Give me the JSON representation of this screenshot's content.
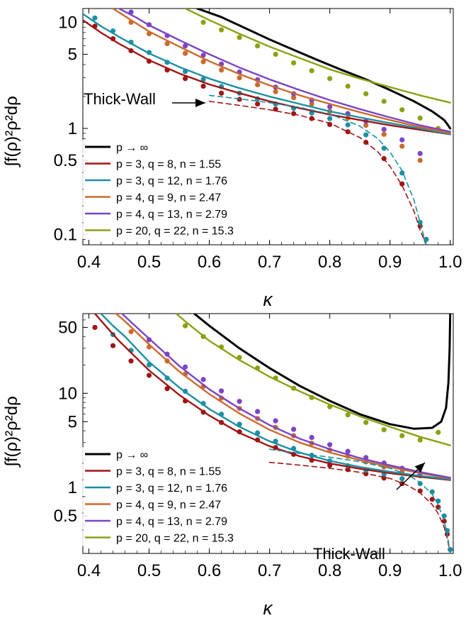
{
  "colors": {
    "p_inf": "#000000",
    "p3q8": "#a01515",
    "p3q12": "#1c8fa3",
    "p4q9": "#cc6a2c",
    "p4q13": "#7b44c6",
    "p20q22": "#8ea012"
  },
  "chart_data": [
    {
      "type": "line",
      "title": "",
      "xlabel": "κ",
      "ylabel": "∫f(ρ)²ρ²dρ",
      "yscale": "log",
      "xlim": [
        0.39,
        1.005
      ],
      "ylim": [
        0.08,
        13.5
      ],
      "x_ticks": [
        0.4,
        0.5,
        0.6,
        0.7,
        0.8,
        0.9,
        1.0
      ],
      "x_tick_labels": [
        "0.4",
        "0.5",
        "0.6",
        "0.7",
        "0.8",
        "0.9",
        "1.0"
      ],
      "y_ticks": [
        0.1,
        0.5,
        1,
        5,
        10
      ],
      "y_tick_labels": [
        "0.1",
        "0.5",
        "1",
        "5",
        "10"
      ],
      "legend_position": "bottom-left",
      "annotation": {
        "text": "Thick-Wall",
        "points_to": [
          0.6,
          2.0
        ]
      },
      "series": [
        {
          "name": "p → ∞",
          "color_key": "p_inf",
          "style": "solid-thick",
          "x": [
            0.58,
            0.62,
            0.66,
            0.7,
            0.74,
            0.78,
            0.82,
            0.86,
            0.9,
            0.94,
            0.97,
            0.99,
            0.995,
            1.0
          ],
          "y": [
            13.5,
            11.2,
            8.8,
            6.9,
            5.5,
            4.4,
            3.55,
            2.9,
            2.3,
            1.8,
            1.45,
            1.2,
            1.1,
            1.0
          ]
        },
        {
          "name": "p = 3, q = 8, n = 1.55",
          "color_key": "p3q8",
          "style": "solid",
          "x": [
            0.39,
            0.42,
            0.45,
            0.5,
            0.55,
            0.6,
            0.65,
            0.7,
            0.75,
            0.8,
            0.85,
            0.9,
            0.95,
            1.0
          ],
          "y": [
            10.5,
            8.0,
            6.3,
            4.4,
            3.3,
            2.6,
            2.15,
            1.8,
            1.55,
            1.35,
            1.2,
            1.07,
            0.97,
            0.88
          ]
        },
        {
          "name": "p = 3, q = 12, n = 1.76",
          "color_key": "p3q12",
          "style": "solid",
          "x": [
            0.39,
            0.42,
            0.45,
            0.5,
            0.55,
            0.6,
            0.65,
            0.7,
            0.75,
            0.8,
            0.85,
            0.9,
            0.95,
            1.0
          ],
          "y": [
            12.0,
            9.2,
            7.3,
            5.1,
            3.8,
            2.95,
            2.4,
            2.0,
            1.7,
            1.45,
            1.27,
            1.12,
            1.0,
            0.88
          ]
        },
        {
          "name": "p = 4, q = 9, n = 2.47",
          "color_key": "p4q9",
          "style": "solid",
          "x": [
            0.44,
            0.47,
            0.5,
            0.55,
            0.6,
            0.65,
            0.7,
            0.75,
            0.8,
            0.85,
            0.9,
            0.95,
            1.0
          ],
          "y": [
            13.5,
            10.5,
            8.2,
            5.9,
            4.3,
            3.25,
            2.55,
            2.05,
            1.7,
            1.42,
            1.2,
            1.03,
            0.9
          ]
        },
        {
          "name": "p = 4, q = 13, n = 2.79",
          "color_key": "p4q13",
          "style": "solid",
          "x": [
            0.45,
            0.48,
            0.5,
            0.55,
            0.6,
            0.65,
            0.7,
            0.75,
            0.8,
            0.85,
            0.9,
            0.95,
            1.0
          ],
          "y": [
            13.5,
            11.0,
            9.4,
            6.8,
            5.0,
            3.75,
            2.9,
            2.3,
            1.85,
            1.52,
            1.27,
            1.07,
            0.93
          ]
        },
        {
          "name": "p = 20, q = 22, n = 15.3",
          "color_key": "p20q22",
          "style": "solid",
          "x": [
            0.56,
            0.6,
            0.65,
            0.7,
            0.75,
            0.8,
            0.85,
            0.9,
            0.95,
            1.0
          ],
          "y": [
            13.5,
            10.5,
            7.8,
            5.9,
            4.6,
            3.6,
            2.95,
            2.45,
            2.05,
            1.75
          ]
        },
        {
          "name": "p = 3, q = 8, n = 1.55 (thick-wall)",
          "color_key": "p3q8",
          "style": "dashed",
          "x": [
            0.6,
            0.65,
            0.7,
            0.75,
            0.8,
            0.85,
            0.88,
            0.9,
            0.92,
            0.94,
            0.95,
            0.96
          ],
          "y": [
            1.8,
            1.65,
            1.5,
            1.33,
            1.12,
            0.82,
            0.6,
            0.44,
            0.29,
            0.165,
            0.11,
            0.08
          ]
        },
        {
          "name": "p = 3, q = 12, n = 1.76 (thick-wall)",
          "color_key": "p3q12",
          "style": "dashed",
          "x": [
            0.6,
            0.65,
            0.7,
            0.75,
            0.8,
            0.85,
            0.88,
            0.9,
            0.92,
            0.94,
            0.95,
            0.96
          ],
          "y": [
            2.05,
            1.9,
            1.75,
            1.58,
            1.37,
            1.05,
            0.8,
            0.6,
            0.4,
            0.21,
            0.13,
            0.08
          ]
        }
      ],
      "points": [
        {
          "color_key": "p3q8",
          "x": [
            0.41,
            0.44,
            0.47,
            0.5,
            0.53,
            0.56,
            0.59,
            0.62,
            0.65,
            0.68,
            0.71,
            0.74,
            0.77,
            0.8,
            0.83,
            0.86,
            0.89,
            0.92,
            0.95,
            0.96
          ],
          "y": [
            9.2,
            7.0,
            5.4,
            4.3,
            3.55,
            2.95,
            2.5,
            2.15,
            1.88,
            1.7,
            1.52,
            1.38,
            1.24,
            1.09,
            0.93,
            0.74,
            0.52,
            0.3,
            0.12,
            0.09
          ]
        },
        {
          "color_key": "p3q12",
          "x": [
            0.41,
            0.44,
            0.47,
            0.5,
            0.53,
            0.56,
            0.59,
            0.62,
            0.65,
            0.68,
            0.71,
            0.74,
            0.77,
            0.8,
            0.83,
            0.86,
            0.89,
            0.92,
            0.95,
            0.96
          ],
          "y": [
            11.0,
            8.3,
            6.5,
            5.2,
            4.2,
            3.45,
            2.9,
            2.48,
            2.15,
            1.9,
            1.7,
            1.55,
            1.4,
            1.24,
            1.08,
            0.87,
            0.65,
            0.38,
            0.13,
            0.09
          ]
        },
        {
          "color_key": "p4q9",
          "x": [
            0.47,
            0.5,
            0.53,
            0.56,
            0.59,
            0.62,
            0.65,
            0.68,
            0.71,
            0.74,
            0.77,
            0.8,
            0.83,
            0.86,
            0.89,
            0.92,
            0.95
          ],
          "y": [
            10.0,
            7.8,
            6.3,
            5.1,
            4.25,
            3.55,
            3.0,
            2.58,
            2.22,
            1.95,
            1.7,
            1.45,
            1.25,
            1.07,
            0.88,
            0.68,
            0.5
          ]
        },
        {
          "color_key": "p4q13",
          "x": [
            0.47,
            0.5,
            0.53,
            0.56,
            0.59,
            0.62,
            0.65,
            0.68,
            0.71,
            0.74,
            0.77,
            0.8,
            0.83,
            0.86,
            0.89,
            0.92,
            0.95
          ],
          "y": [
            12.5,
            9.5,
            7.5,
            6.0,
            4.9,
            4.05,
            3.4,
            2.88,
            2.45,
            2.12,
            1.85,
            1.6,
            1.38,
            1.17,
            0.98,
            0.78,
            0.58
          ]
        },
        {
          "color_key": "p20q22",
          "x": [
            0.59,
            0.62,
            0.65,
            0.68,
            0.71,
            0.74,
            0.77,
            0.8,
            0.83,
            0.86,
            0.89,
            0.92,
            0.95,
            0.98
          ],
          "y": [
            10.0,
            8.5,
            7.2,
            6.0,
            5.0,
            4.15,
            3.5,
            2.95,
            2.5,
            2.12,
            1.8,
            1.5,
            1.25,
            1.0
          ]
        }
      ]
    },
    {
      "type": "line",
      "title": "",
      "xlabel": "κ",
      "ylabel": "∫f(ρ)²ρ²dρ",
      "yscale": "log",
      "xlim": [
        0.39,
        1.005
      ],
      "ylim": [
        0.2,
        70
      ],
      "x_ticks": [
        0.4,
        0.5,
        0.6,
        0.7,
        0.8,
        0.9,
        1.0
      ],
      "x_tick_labels": [
        "0.4",
        "0.5",
        "0.6",
        "0.7",
        "0.8",
        "0.9",
        "1.0"
      ],
      "y_ticks": [
        0.5,
        1,
        5,
        10,
        50
      ],
      "y_tick_labels": [
        "0.5",
        "1",
        "5",
        "10",
        "50"
      ],
      "legend_position": "bottom-left",
      "annotation": {
        "text": "Thick-Wall",
        "points_to": [
          0.975,
          0.95
        ]
      },
      "series": [
        {
          "name": "p → ∞",
          "color_key": "p_inf",
          "style": "solid-thick",
          "x": [
            0.575,
            0.6,
            0.65,
            0.7,
            0.75,
            0.8,
            0.85,
            0.9,
            0.94,
            0.97,
            0.985,
            0.993,
            0.997,
            0.999,
            1.0
          ],
          "y": [
            70,
            52,
            30,
            18.5,
            12.0,
            8.3,
            6.0,
            4.7,
            4.2,
            4.3,
            5.0,
            7.0,
            13.0,
            30.0,
            70.0
          ]
        },
        {
          "name": "p = 3, q = 8, n = 1.55",
          "color_key": "p3q8",
          "style": "solid",
          "x": [
            0.41,
            0.43,
            0.45,
            0.5,
            0.55,
            0.6,
            0.65,
            0.7,
            0.75,
            0.8,
            0.85,
            0.9,
            0.95,
            1.0
          ],
          "y": [
            70,
            50,
            36,
            17.5,
            9.6,
            5.8,
            3.8,
            2.75,
            2.15,
            1.8,
            1.58,
            1.42,
            1.3,
            1.2
          ]
        },
        {
          "name": "p = 3, q = 12, n = 1.76",
          "color_key": "p3q12",
          "style": "solid",
          "x": [
            0.42,
            0.44,
            0.46,
            0.5,
            0.55,
            0.6,
            0.65,
            0.7,
            0.75,
            0.8,
            0.85,
            0.9,
            0.95,
            1.0
          ],
          "y": [
            70,
            52,
            40,
            21.5,
            11.5,
            6.8,
            4.4,
            3.1,
            2.35,
            1.92,
            1.65,
            1.47,
            1.33,
            1.22
          ]
        },
        {
          "name": "p = 4, q = 9, n = 2.47",
          "color_key": "p4q9",
          "style": "solid",
          "x": [
            0.445,
            0.46,
            0.5,
            0.55,
            0.6,
            0.65,
            0.7,
            0.75,
            0.8,
            0.85,
            0.9,
            0.95,
            1.0
          ],
          "y": [
            70,
            58,
            33,
            17.0,
            9.8,
            6.1,
            4.1,
            3.0,
            2.35,
            1.95,
            1.65,
            1.42,
            1.25
          ]
        },
        {
          "name": "p = 4, q = 13, n = 2.79",
          "color_key": "p4q13",
          "style": "solid",
          "x": [
            0.455,
            0.47,
            0.5,
            0.55,
            0.6,
            0.65,
            0.7,
            0.75,
            0.8,
            0.85,
            0.9,
            0.95,
            1.0
          ],
          "y": [
            70,
            57,
            38,
            19.5,
            11.0,
            6.9,
            4.6,
            3.3,
            2.55,
            2.05,
            1.72,
            1.46,
            1.27
          ]
        },
        {
          "name": "p = 20, q = 22, n = 15.3",
          "color_key": "p20q22",
          "style": "solid",
          "x": [
            0.545,
            0.56,
            0.6,
            0.65,
            0.7,
            0.75,
            0.8,
            0.85,
            0.9,
            0.95,
            1.0
          ],
          "y": [
            70,
            58,
            36,
            22.5,
            15.0,
            10.5,
            7.6,
            5.7,
            4.4,
            3.45,
            2.8
          ]
        },
        {
          "name": "p = 3, q = 8, n = 1.55 (thick-wall)",
          "color_key": "p3q8",
          "style": "dashed",
          "x": [
            0.7,
            0.75,
            0.8,
            0.85,
            0.9,
            0.93,
            0.95,
            0.97,
            0.98,
            0.99,
            0.995,
            1.0
          ],
          "y": [
            1.85,
            1.73,
            1.6,
            1.45,
            1.25,
            1.05,
            0.88,
            0.66,
            0.53,
            0.38,
            0.29,
            0.2
          ]
        },
        {
          "name": "p = 3, q = 12, n = 1.76 (thick-wall)",
          "color_key": "p3q12",
          "style": "dashed",
          "x": [
            0.7,
            0.75,
            0.8,
            0.85,
            0.9,
            0.93,
            0.95,
            0.97,
            0.98,
            0.99,
            0.995,
            1.0
          ],
          "y": [
            2.55,
            2.3,
            2.1,
            1.88,
            1.6,
            1.36,
            1.13,
            0.85,
            0.66,
            0.44,
            0.32,
            0.2
          ]
        }
      ],
      "points": [
        {
          "color_key": "p3q8",
          "x": [
            0.41,
            0.44,
            0.47,
            0.5,
            0.53,
            0.56,
            0.59,
            0.62,
            0.65,
            0.68,
            0.71,
            0.74,
            0.77,
            0.8,
            0.83,
            0.86,
            0.89,
            0.92,
            0.95,
            0.97,
            0.98,
            0.99,
            0.995,
            1.0
          ],
          "y": [
            50,
            32,
            22,
            15.5,
            11.2,
            8.3,
            6.3,
            4.9,
            3.9,
            3.2,
            2.65,
            2.25,
            1.95,
            1.72,
            1.55,
            1.4,
            1.26,
            1.1,
            0.92,
            0.75,
            0.62,
            0.44,
            0.32,
            0.22
          ]
        },
        {
          "color_key": "p3q12",
          "x": [
            0.44,
            0.47,
            0.5,
            0.53,
            0.56,
            0.59,
            0.62,
            0.65,
            0.68,
            0.71,
            0.74,
            0.77,
            0.8,
            0.83,
            0.86,
            0.89,
            0.92,
            0.95,
            0.97,
            0.98,
            0.99,
            0.995,
            1.0
          ],
          "y": [
            42,
            28.5,
            20.0,
            14.5,
            10.5,
            7.8,
            6.0,
            4.7,
            3.8,
            3.1,
            2.6,
            2.2,
            1.92,
            1.7,
            1.53,
            1.38,
            1.24,
            1.1,
            0.9,
            0.72,
            0.5,
            0.35,
            0.22
          ]
        },
        {
          "color_key": "p4q9",
          "x": [
            0.47,
            0.5,
            0.53,
            0.56,
            0.59,
            0.62,
            0.65,
            0.68,
            0.71,
            0.74,
            0.77,
            0.8,
            0.83,
            0.86,
            0.89,
            0.92,
            0.95
          ],
          "y": [
            45,
            31,
            22,
            16.0,
            11.8,
            8.9,
            6.9,
            5.4,
            4.35,
            3.55,
            2.95,
            2.5,
            2.15,
            1.87,
            1.65,
            1.47,
            1.33
          ]
        },
        {
          "color_key": "p4q13",
          "x": [
            0.5,
            0.53,
            0.56,
            0.59,
            0.62,
            0.65,
            0.68,
            0.71,
            0.74,
            0.77,
            0.8,
            0.83,
            0.86,
            0.89,
            0.92,
            0.95
          ],
          "y": [
            37,
            26,
            19.0,
            14.0,
            10.6,
            8.2,
            6.4,
            5.1,
            4.15,
            3.4,
            2.85,
            2.42,
            2.08,
            1.82,
            1.6,
            1.42
          ]
        },
        {
          "color_key": "p20q22",
          "x": [
            0.56,
            0.59,
            0.62,
            0.65,
            0.68,
            0.71,
            0.74,
            0.77,
            0.8,
            0.83,
            0.86,
            0.89,
            0.92,
            0.95,
            0.98
          ],
          "y": [
            52,
            40,
            31,
            24,
            18.5,
            14.5,
            11.3,
            9.0,
            7.2,
            5.9,
            4.9,
            4.1,
            3.55,
            3.2,
            3.85
          ]
        }
      ]
    }
  ]
}
